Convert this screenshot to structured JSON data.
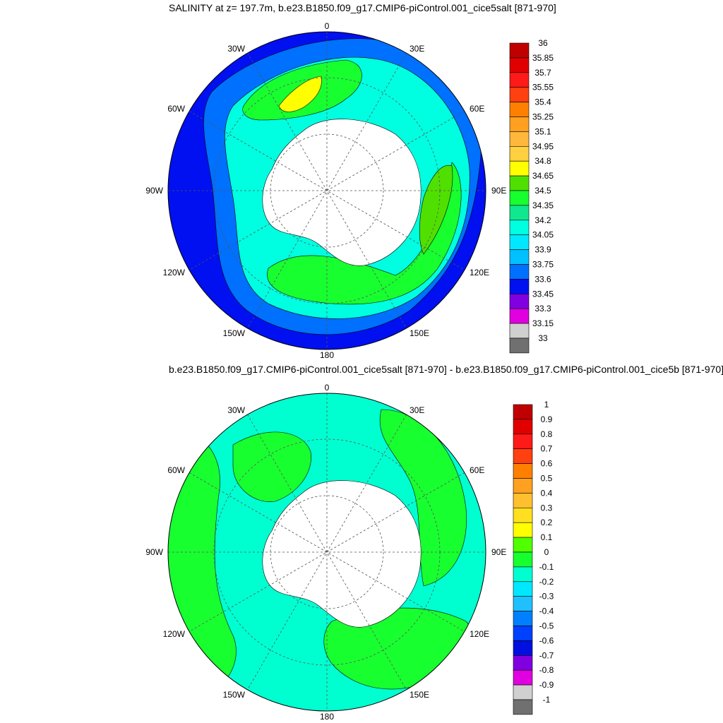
{
  "top_panel": {
    "title": "SALINITY at z= 197.7m, b.e23.B1850.f09_g17.CMIP6-piControl.001_cice5salt [871-970]",
    "lon_labels": [
      "0",
      "30E",
      "60E",
      "90E",
      "120E",
      "150E",
      "180",
      "150W",
      "120W",
      "90W",
      "60W",
      "30W"
    ],
    "colorbar": {
      "labels": [
        "36",
        "35.85",
        "35.7",
        "35.55",
        "35.4",
        "35.25",
        "35.1",
        "34.95",
        "34.8",
        "34.65",
        "34.5",
        "34.35",
        "34.2",
        "34.05",
        "33.9",
        "33.75",
        "33.6",
        "33.45",
        "33.3",
        "33.15",
        "33"
      ],
      "colors": [
        "#c00000",
        "#e00000",
        "#ff1a1a",
        "#ff4010",
        "#ff8000",
        "#ffa020",
        "#ffb83c",
        "#ffd040",
        "#ffff00",
        "#50e000",
        "#18ff30",
        "#10e890",
        "#00ffe0",
        "#00e8ff",
        "#00c0ff",
        "#0070ff",
        "#0010f0",
        "#8000e0",
        "#e000e0",
        "#d0d0d0",
        "#707070"
      ]
    }
  },
  "bottom_panel": {
    "title": "b.e23.B1850.f09_g17.CMIP6-piControl.001_cice5salt [871-970] - b.e23.B1850.f09_g17.CMIP6-piControl.001_cice5b [871-970]",
    "lon_labels": [
      "0",
      "30E",
      "60E",
      "90E",
      "120E",
      "150E",
      "180",
      "150W",
      "120W",
      "90W",
      "60W",
      "30W"
    ],
    "colorbar": {
      "labels": [
        "1",
        "0.9",
        "0.8",
        "0.7",
        "0.6",
        "0.5",
        "0.4",
        "0.3",
        "0.2",
        "0.1",
        "0",
        "-0.1",
        "-0.2",
        "-0.3",
        "-0.4",
        "-0.5",
        "-0.6",
        "-0.7",
        "-0.8",
        "-0.9",
        "-1"
      ],
      "colors": [
        "#c00000",
        "#e00000",
        "#ff1a1a",
        "#ff4010",
        "#ff8000",
        "#ffa020",
        "#ffc030",
        "#ffe020",
        "#ffff00",
        "#50ff00",
        "#18ff30",
        "#00ffd0",
        "#00e8ff",
        "#20c0ff",
        "#0080ff",
        "#0040ff",
        "#0010e0",
        "#8000e0",
        "#e000e0",
        "#d0d0d0",
        "#707070"
      ]
    }
  },
  "colors": {
    "antarctica": "#ffffff",
    "deep_blue": "#0010f0",
    "light_blue": "#0070ff",
    "cyan": "#00ffe0",
    "green": "#18ff30",
    "lime": "#50e000",
    "yellow": "#ffff00",
    "diff_cyan": "#00ffd0",
    "diff_green": "#18ff30"
  }
}
